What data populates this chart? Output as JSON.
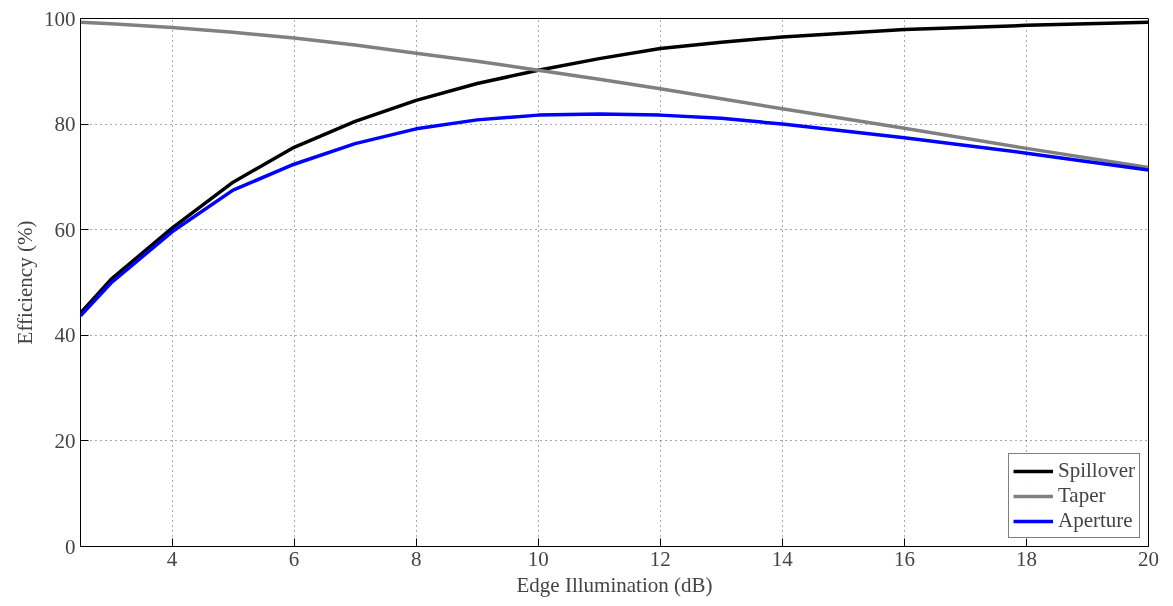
{
  "chart_data": {
    "type": "line",
    "xlabel": "Edge Illumination (dB)",
    "ylabel": "Efficiency (%)",
    "x": [
      2.5,
      3,
      4,
      5,
      6,
      7,
      8,
      9,
      10,
      11,
      12,
      13,
      14,
      16,
      18,
      20
    ],
    "series": [
      {
        "name": "Spillover",
        "color": "#000000",
        "values": [
          44.2,
          50.6,
          60.3,
          69.0,
          75.6,
          80.5,
          84.5,
          87.7,
          90.2,
          92.4,
          94.3,
          95.5,
          96.5,
          97.9,
          98.7,
          99.3
        ]
      },
      {
        "name": "Taper",
        "color": "#808080",
        "values": [
          99.3,
          99.0,
          98.3,
          97.4,
          96.3,
          95.0,
          93.4,
          91.9,
          90.2,
          88.5,
          86.7,
          84.8,
          82.9,
          79.2,
          75.4,
          71.8
        ]
      },
      {
        "name": "Aperture",
        "color": "#0000ff",
        "values": [
          43.7,
          49.9,
          59.6,
          67.5,
          72.4,
          76.3,
          79.1,
          80.8,
          81.7,
          81.9,
          81.7,
          81.1,
          80.0,
          77.4,
          74.5,
          71.3
        ]
      }
    ],
    "xlim": [
      2.5,
      20
    ],
    "ylim": [
      0,
      100
    ],
    "xticks": [
      4,
      6,
      8,
      10,
      12,
      14,
      16,
      18,
      20
    ],
    "yticks": [
      0,
      20,
      40,
      60,
      80,
      100
    ],
    "grid": true,
    "legend": "bottom right",
    "line_style": "solid",
    "marker": "none"
  }
}
